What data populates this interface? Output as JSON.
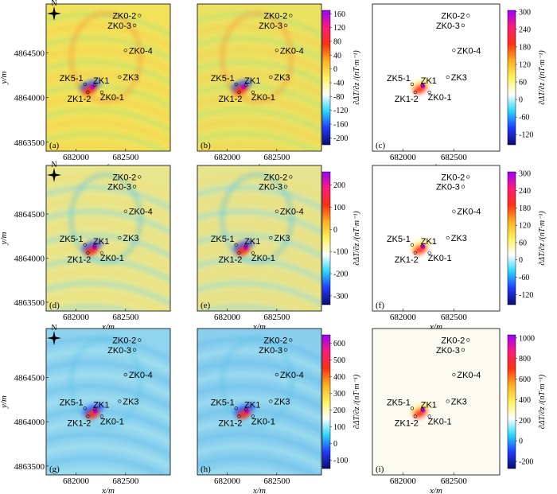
{
  "figure": {
    "x_label": "x/m",
    "y_label": "y/m",
    "x_ticks": [
      "682000",
      "682500"
    ],
    "y_ticks": [
      "4864500",
      "4864000",
      "4863500"
    ],
    "north_symbol": "N",
    "colorbar_label": "∂ΔT/∂z /(nT·m⁻¹)"
  },
  "chart_data": [
    {
      "panel": "(a)",
      "type": "heatmap",
      "colorbar": "cb1",
      "background": "#f2e25a",
      "xlabel": "x/m",
      "ylabel": "y/m",
      "compass": true,
      "hot": {
        "x": 682150,
        "y": 4864120
      }
    },
    {
      "panel": "(b)",
      "type": "heatmap",
      "colorbar": "cb1",
      "background": "#ece262",
      "xlabel": "x/m",
      "ylabel": "",
      "compass": false,
      "hot": {
        "x": 682150,
        "y": 4864120
      }
    },
    {
      "panel": "(c)",
      "type": "heatmap",
      "colorbar": "cb2",
      "background": "#ffffff",
      "xlabel": "x/m",
      "ylabel": "",
      "compass": false,
      "hot": {
        "x": 682180,
        "y": 4864130
      }
    },
    {
      "panel": "(d)",
      "type": "heatmap",
      "colorbar": "cb3",
      "background": "#e8e68e",
      "xlabel": "x/m",
      "ylabel": "y/m",
      "compass": true,
      "hot": {
        "x": 682170,
        "y": 4864120
      }
    },
    {
      "panel": "(e)",
      "type": "heatmap",
      "colorbar": "cb3",
      "background": "#e6e490",
      "xlabel": "x/m",
      "ylabel": "",
      "compass": false,
      "hot": {
        "x": 682170,
        "y": 4864120
      }
    },
    {
      "panel": "(f)",
      "type": "heatmap",
      "colorbar": "cb4",
      "background": "#ffffff",
      "xlabel": "x/m",
      "ylabel": "",
      "compass": false,
      "hot": {
        "x": 682180,
        "y": 4864130
      }
    },
    {
      "panel": "(g)",
      "type": "heatmap",
      "colorbar": "cb5",
      "background": "#8fd4ee",
      "xlabel": "x/m",
      "ylabel": "y/m",
      "compass": true,
      "hot": {
        "x": 682180,
        "y": 4864120
      }
    },
    {
      "panel": "(h)",
      "type": "heatmap",
      "colorbar": "cb5",
      "background": "#8ad0ee",
      "xlabel": "x/m",
      "ylabel": "",
      "compass": false,
      "hot": {
        "x": 682180,
        "y": 4864120
      }
    },
    {
      "panel": "(i)",
      "type": "heatmap",
      "colorbar": "cb6",
      "background": "#fbfbf2",
      "xlabel": "x/m",
      "ylabel": "",
      "compass": false,
      "hot": {
        "x": 682180,
        "y": 4864130
      }
    }
  ],
  "wells": [
    {
      "name": "ZK0-2",
      "x": 682640,
      "y": 4864920
    },
    {
      "name": "ZK0-3",
      "x": 682590,
      "y": 4864810
    },
    {
      "name": "ZK0-4",
      "x": 682500,
      "y": 4864530
    },
    {
      "name": "ZK5-1",
      "x": 682090,
      "y": 4864150
    },
    {
      "name": "ZK1",
      "x": 682190,
      "y": 4864140
    },
    {
      "name": "ZK3",
      "x": 682440,
      "y": 4864230
    },
    {
      "name": "ZK1-2",
      "x": 682120,
      "y": 4864060
    },
    {
      "name": "ZK0-1",
      "x": 682260,
      "y": 4864060
    }
  ],
  "colorbars": {
    "cb1": {
      "ticks": [
        "160",
        "120",
        "80",
        "40",
        "0",
        "-40",
        "-80",
        "-120",
        "-160",
        "-200"
      ],
      "min": -220,
      "max": 170
    },
    "cb2": {
      "ticks": [
        "300",
        "240",
        "180",
        "120",
        "60",
        "0",
        "-60",
        "-120"
      ],
      "min": -155,
      "max": 305
    },
    "cb3": {
      "ticks": [
        "200",
        "100",
        "0",
        "-100",
        "-200",
        "-300"
      ],
      "min": -340,
      "max": 260
    },
    "cb4": {
      "ticks": [
        "300",
        "240",
        "180",
        "120",
        "60",
        "0",
        "-60",
        "-120"
      ],
      "min": -155,
      "max": 305
    },
    "cb5": {
      "ticks": [
        "600",
        "500",
        "400",
        "300",
        "200",
        "100",
        "0",
        "-100"
      ],
      "min": -150,
      "max": 650
    },
    "cb6": {
      "ticks": [
        "1000",
        "800",
        "600",
        "400",
        "200",
        "0",
        "-200"
      ],
      "min": -270,
      "max": 1030
    }
  },
  "colors": {
    "cbar_gradient": [
      "#0b0b70",
      "#1f3bff",
      "#27d8ff",
      "#ffffff",
      "#fff25a",
      "#ffb020",
      "#ff3010",
      "#ff1a7a",
      "#9a00ff"
    ]
  }
}
